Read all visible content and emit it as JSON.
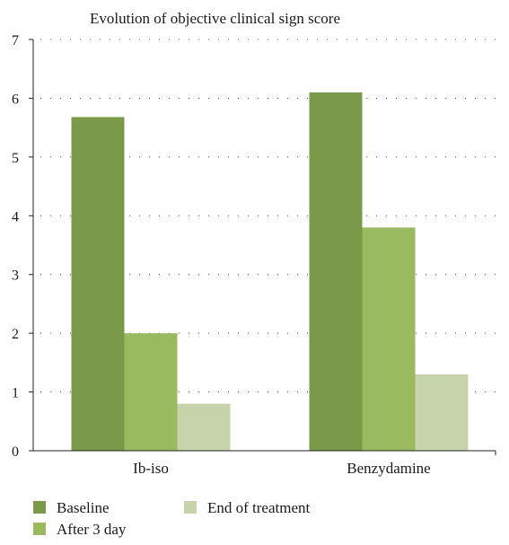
{
  "chart_data": {
    "type": "bar",
    "title": "Evolution of objective clinical sign score",
    "xlabel": "",
    "ylabel": "",
    "ylim": [
      0,
      7
    ],
    "yticks": [
      0,
      1,
      2,
      3,
      4,
      5,
      6,
      7
    ],
    "grid": "horizontal-dotted",
    "legend": "bottom-left",
    "categories": [
      "Ib-iso",
      "Benzydamine"
    ],
    "series": [
      {
        "name": "Baseline",
        "values": [
          5.68,
          6.1
        ],
        "color": "#7a9a4a"
      },
      {
        "name": "After 3 day",
        "values": [
          2.0,
          3.8
        ],
        "color": "#9aba60"
      },
      {
        "name": "End of treatment",
        "values": [
          0.8,
          1.3
        ],
        "color": "#c6d3ab"
      }
    ]
  }
}
